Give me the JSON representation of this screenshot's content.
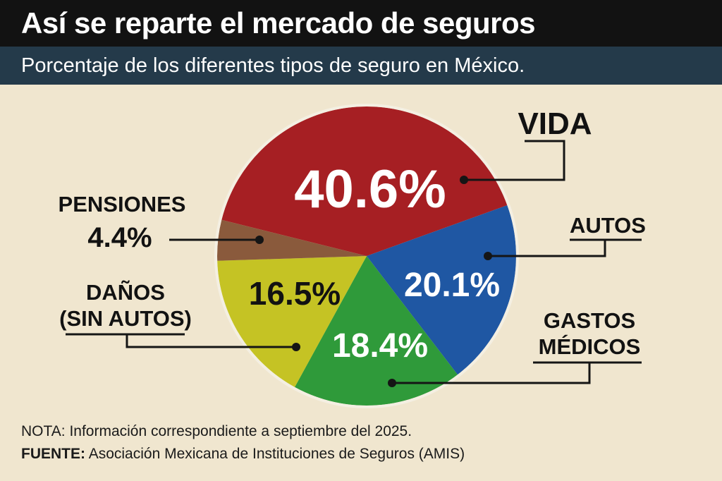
{
  "header": {
    "title": "Así se reparte el mercado de seguros",
    "subtitle": "Porcentaje de los diferentes tipos de seguro en México."
  },
  "footer": {
    "note": "NOTA: Información correspondiente a septiembre del 2025.",
    "source_label": "FUENTE:",
    "source_text": "Asociación Mexicana de Instituciones de Seguros (AMIS)"
  },
  "chart_data": {
    "type": "pie",
    "title": "Así se reparte el mercado de seguros",
    "subtitle": "Porcentaje de los diferentes tipos de seguro en México.",
    "unit": "%",
    "slices": [
      {
        "label": "VIDA",
        "value": 40.6,
        "value_label": "40.6%",
        "color": "#a61f23"
      },
      {
        "label": "AUTOS",
        "value": 20.1,
        "value_label": "20.1%",
        "color": "#1f57a3"
      },
      {
        "label": "GASTOS MÉDICOS",
        "value": 18.4,
        "value_label": "18.4%",
        "color": "#2f9a3a"
      },
      {
        "label": "DAÑOS (SIN AUTOS)",
        "value": 16.5,
        "value_label": "16.5%",
        "color": "#c5c324"
      },
      {
        "label": "PENSIONES",
        "value": 4.4,
        "value_label": "4.4%",
        "color": "#8a5a3c"
      }
    ],
    "label_lines": {
      "gastos_medicos": [
        "GASTOS",
        "MÉDICOS"
      ],
      "danos": [
        "DAÑOS",
        "(SIN AUTOS)"
      ]
    }
  }
}
